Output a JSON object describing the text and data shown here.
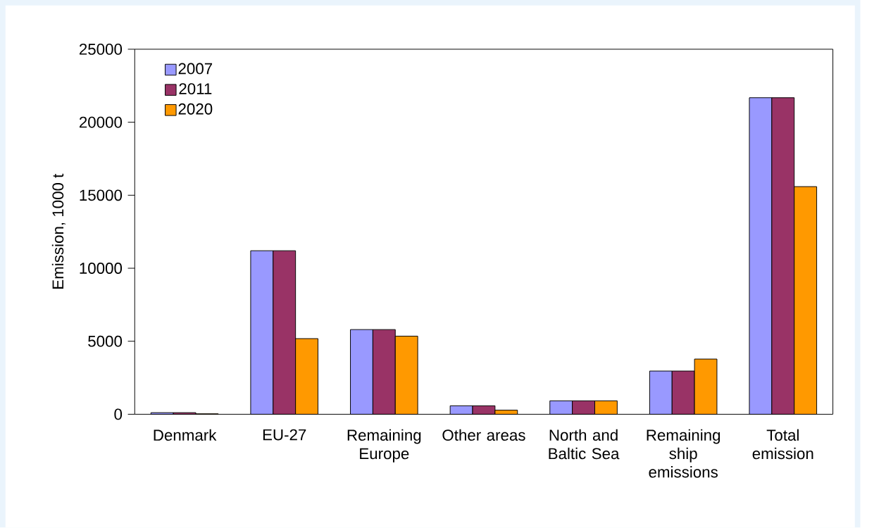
{
  "chart_data": {
    "type": "bar",
    "ylabel": "Emission, 1000 t",
    "categories": [
      "Denmark",
      "EU-27",
      "Remaining Europe",
      "Other areas",
      "North and Baltic Sea",
      "Remaining ship emissions",
      "Total emission"
    ],
    "series": [
      {
        "name": "2007",
        "color": "#9999ff",
        "values": [
          110,
          11200,
          5800,
          580,
          920,
          2960,
          21680
        ]
      },
      {
        "name": "2011",
        "color": "#993366",
        "values": [
          110,
          11200,
          5800,
          580,
          920,
          2960,
          21680
        ]
      },
      {
        "name": "2020",
        "color": "#ff9900",
        "values": [
          30,
          5180,
          5350,
          280,
          920,
          3780,
          15590
        ]
      }
    ],
    "ylim": [
      0,
      25000
    ],
    "yticks": [
      0,
      5000,
      10000,
      15000,
      20000,
      25000
    ],
    "legend": "top left"
  }
}
